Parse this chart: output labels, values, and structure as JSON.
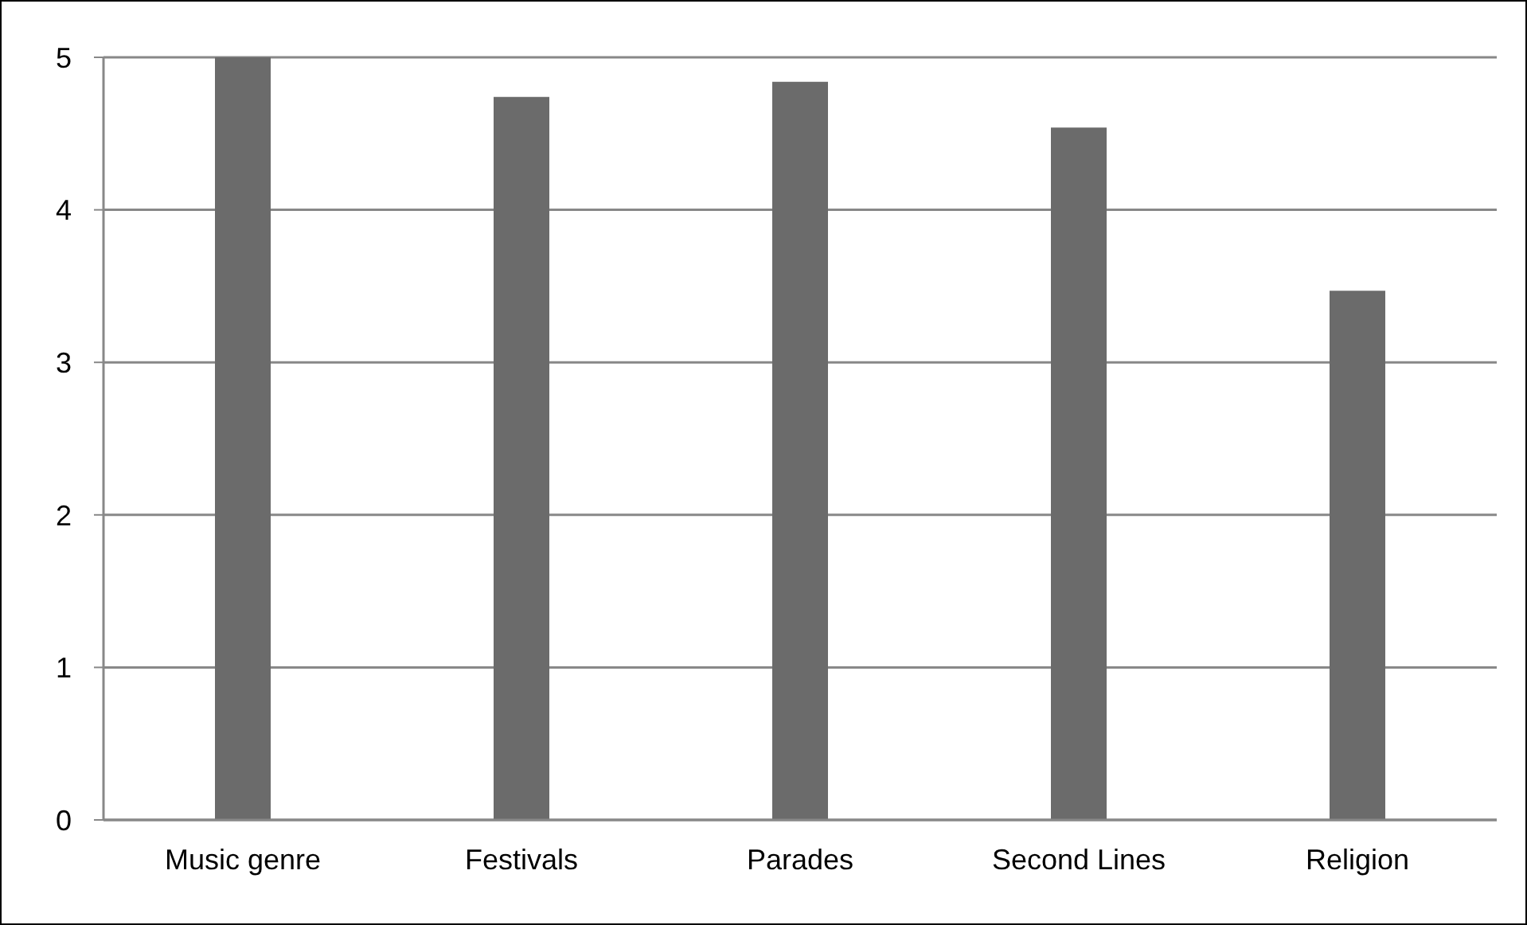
{
  "chart_data": {
    "type": "bar",
    "categories": [
      "Music genre",
      "Festivals",
      "Parades",
      "Second Lines",
      "Religion"
    ],
    "values": [
      5.0,
      4.74,
      4.84,
      4.54,
      3.47
    ],
    "color": "#6b6b6b",
    "ylim": [
      0,
      5
    ],
    "yticks": [
      0,
      1,
      2,
      3,
      4,
      5
    ],
    "grid": "y"
  }
}
